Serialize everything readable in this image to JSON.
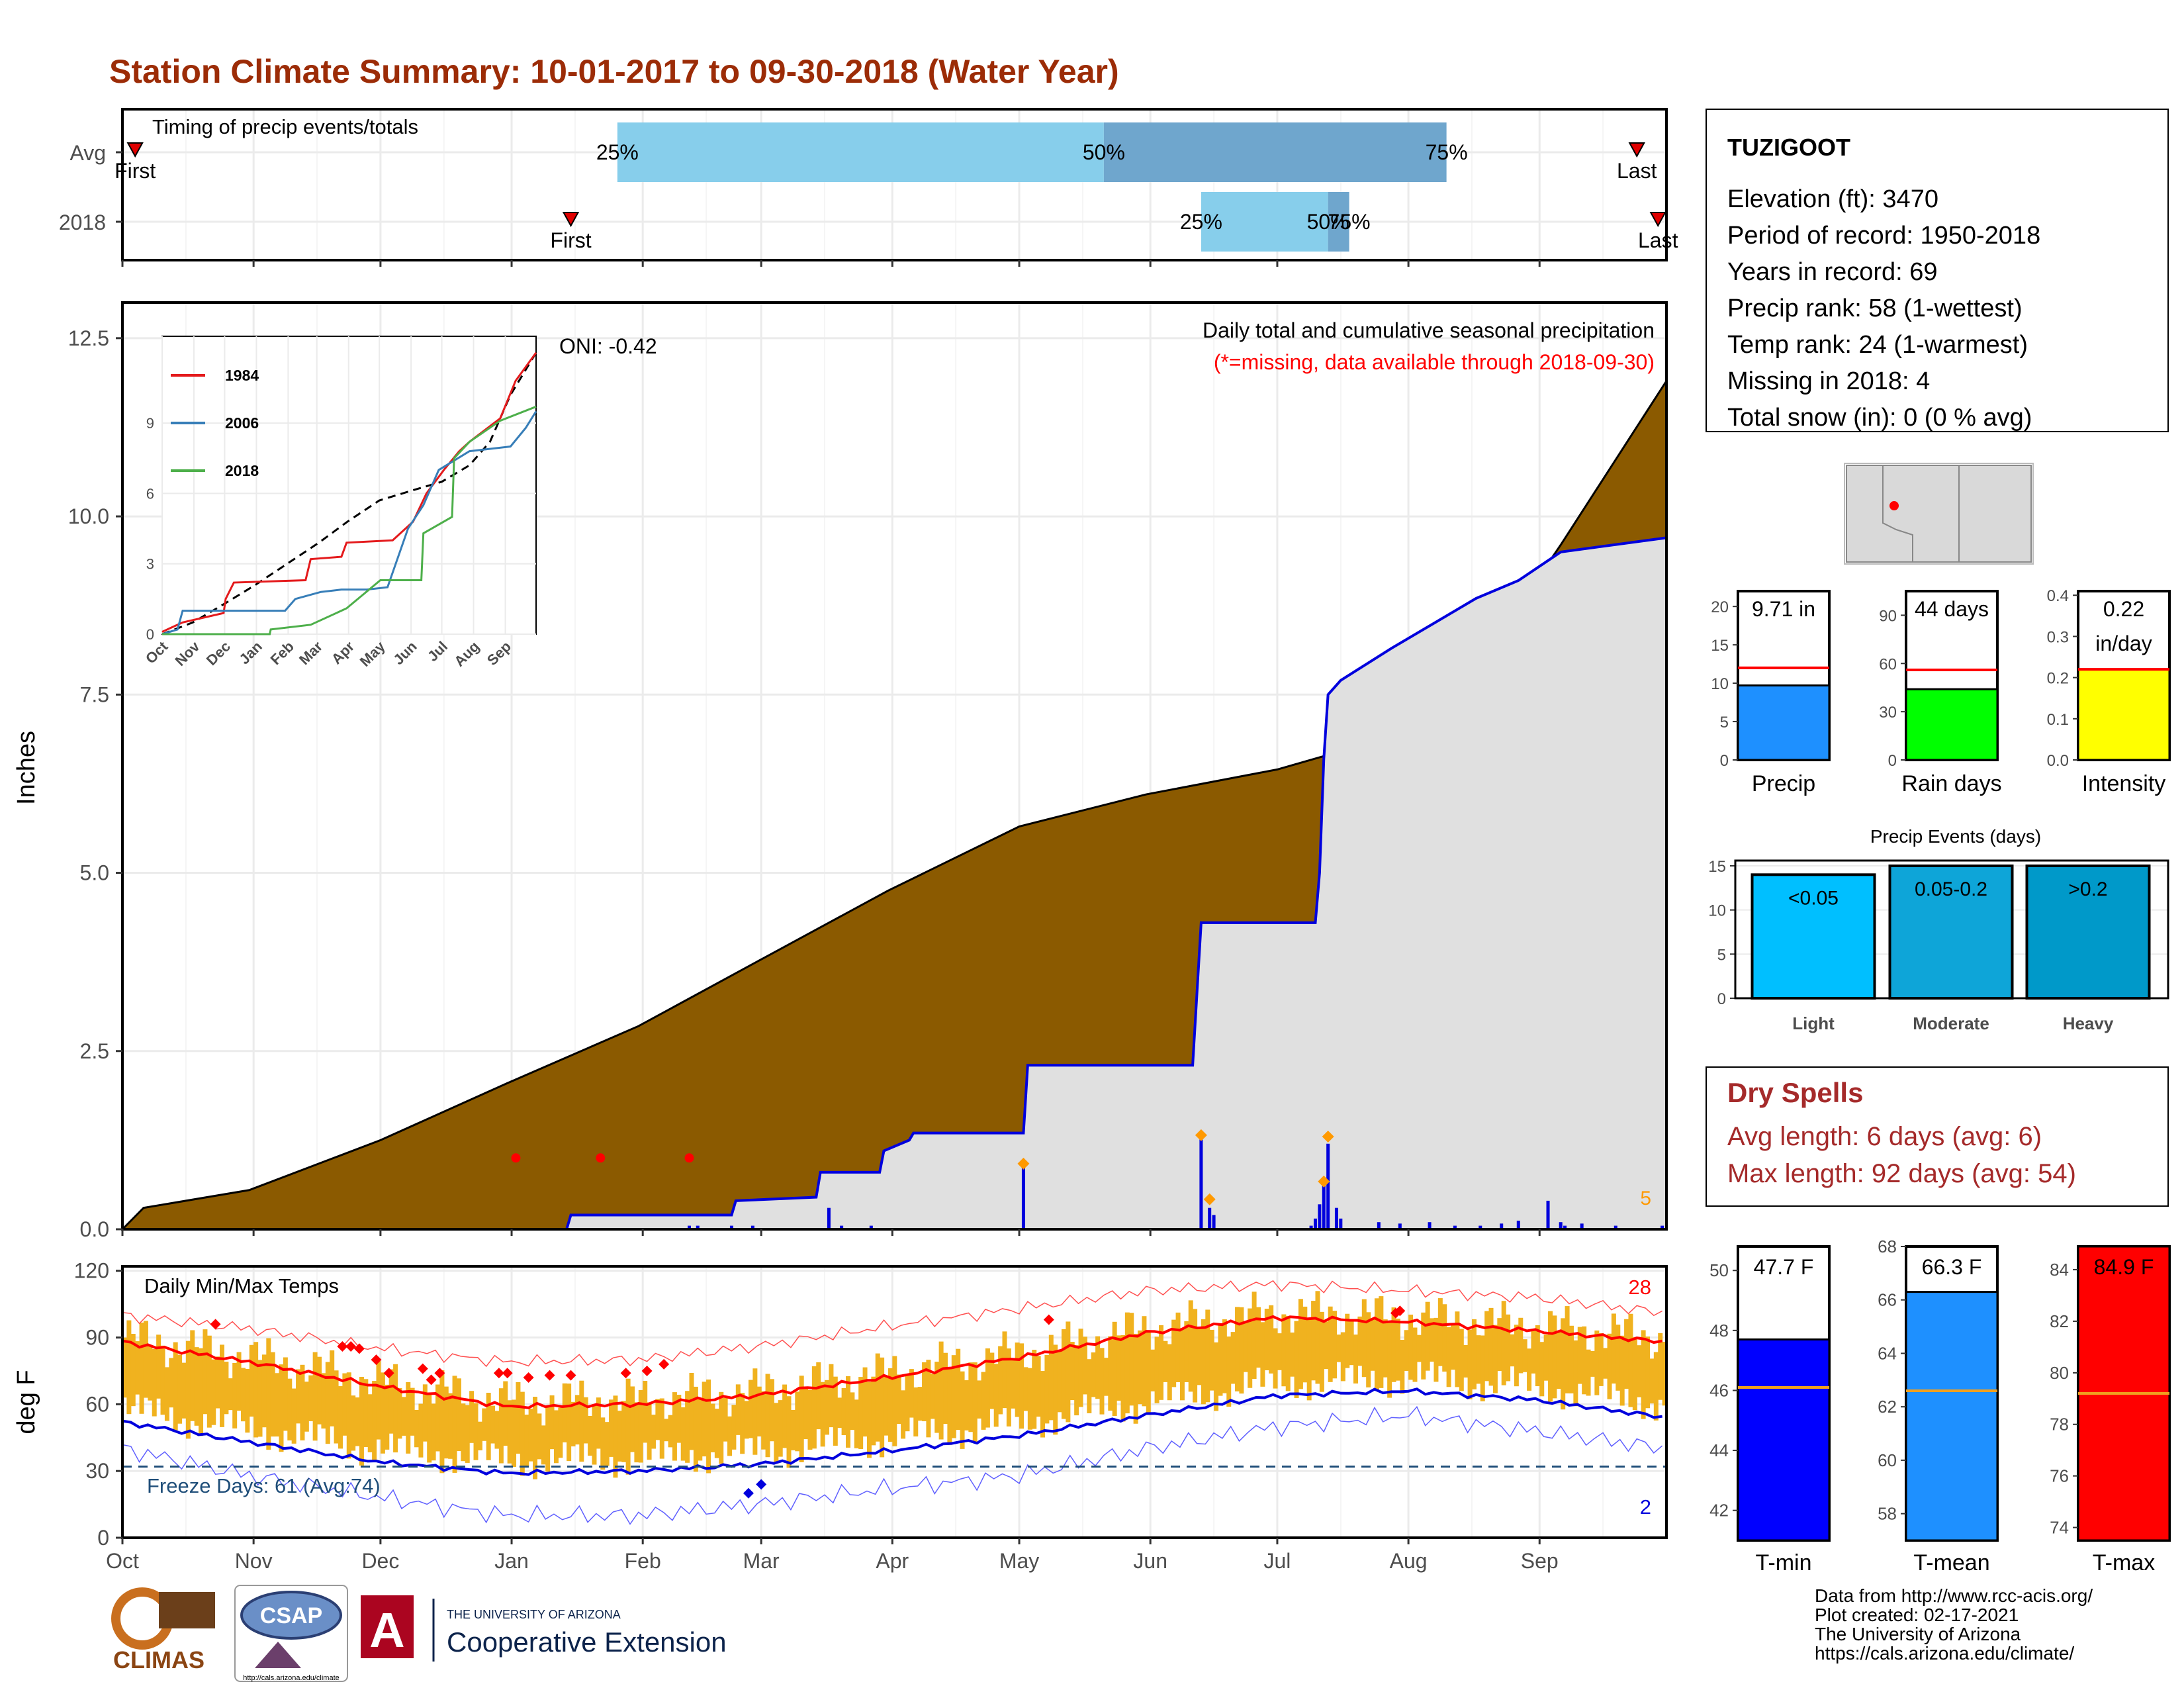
{
  "page": {
    "title": "Station Climate Summary: 10-01-2017 to 09-30-2018 (Water Year)",
    "title_color": "#9c2c07",
    "footer_credits": [
      "Data from http://www.rcc-acis.org/",
      "Plot created: 02-17-2021",
      "The University of Arizona",
      "https://cals.arizona.edu/climate/"
    ],
    "logos": {
      "climas": "CLIMAS",
      "csap": "CSAP",
      "csap_url": "http://cals.arizona.edu/climate",
      "ua_small": "THE UNIVERSITY OF ARIZONA",
      "ua_big": "Cooperative Extension",
      "ua_letter": "A"
    }
  },
  "station": {
    "name": "TUZIGOOT",
    "lines": [
      "Elevation (ft): 3470",
      "Period of record: 1950-2018",
      "Years in record: 69",
      "Precip rank: 58 (1-wettest)",
      "Temp rank: 24 (1-warmest)",
      "Missing in 2018: 4",
      "Total snow (in): 0 (0 % avg)"
    ]
  },
  "months": [
    "Oct",
    "Nov",
    "Dec",
    "Jan",
    "Feb",
    "Mar",
    "Apr",
    "May",
    "Jun",
    "Jul",
    "Aug",
    "Sep"
  ],
  "timing": {
    "title": "Timing of precip events/totals",
    "rows": [
      "Avg",
      "2018"
    ],
    "avg": {
      "first": 3,
      "last": 358,
      "p25": 117,
      "p50": 232,
      "p75": 313
    },
    "y2018": {
      "first": 106,
      "last": 363,
      "p25": 255,
      "p50": 285,
      "p75": 290
    },
    "marker_labels": {
      "first": "First",
      "last": "Last",
      "p25": "25%",
      "p50": "50%",
      "p75": "75%"
    },
    "colors": {
      "light": "#87ceeb",
      "dark": "#6fa6cd",
      "marker": "#e00000"
    }
  },
  "precip": {
    "ylabel": "Inches",
    "yticks": [
      "0.0",
      "2.5",
      "5.0",
      "7.5",
      "10.0",
      "12.5"
    ],
    "title": "Daily total and cumulative seasonal precipitation",
    "subtitle": "(*=missing, data available through 2018-09-30)",
    "missing_count": "5",
    "colors": {
      "avg_fill": "#8b5a00",
      "obs_fill": "#e0e0e0",
      "obs_line": "#0000dd",
      "bars": "#0000dd",
      "missing": "#ff9900"
    },
    "avg_cumulative": [
      [
        0,
        0.0
      ],
      [
        5,
        0.3
      ],
      [
        30,
        0.55
      ],
      [
        61,
        1.25
      ],
      [
        91,
        2.05
      ],
      [
        122,
        2.85
      ],
      [
        153,
        3.85
      ],
      [
        181,
        4.75
      ],
      [
        212,
        5.65
      ],
      [
        242,
        6.1
      ],
      [
        273,
        6.45
      ],
      [
        283,
        6.62
      ],
      [
        300,
        6.9
      ],
      [
        314,
        7.5
      ],
      [
        324,
        8.2
      ],
      [
        340,
        9.6
      ],
      [
        365,
        11.9
      ]
    ],
    "obs_cumulative": [
      [
        0,
        0.0
      ],
      [
        105,
        0.0
      ],
      [
        106,
        0.2
      ],
      [
        144,
        0.2
      ],
      [
        145,
        0.4
      ],
      [
        164,
        0.45
      ],
      [
        165,
        0.8
      ],
      [
        179,
        0.8
      ],
      [
        180,
        1.1
      ],
      [
        186,
        1.25
      ],
      [
        187,
        1.35
      ],
      [
        213,
        1.35
      ],
      [
        214,
        2.3
      ],
      [
        253,
        2.3
      ],
      [
        255,
        4.3
      ],
      [
        282,
        4.3
      ],
      [
        283,
        5.0
      ],
      [
        284,
        6.6
      ],
      [
        285,
        7.5
      ],
      [
        288,
        7.7
      ],
      [
        300,
        8.15
      ],
      [
        320,
        8.85
      ],
      [
        330,
        9.1
      ],
      [
        340,
        9.5
      ],
      [
        365,
        9.7
      ]
    ],
    "daily_bars": [
      [
        134,
        0.05
      ],
      [
        136,
        0.05
      ],
      [
        144,
        0.05
      ],
      [
        149,
        0.05
      ],
      [
        167,
        0.3
      ],
      [
        170,
        0.05
      ],
      [
        177,
        0.05
      ],
      [
        213,
        0.9
      ],
      [
        255,
        1.3
      ],
      [
        257,
        0.3
      ],
      [
        258,
        0.2
      ],
      [
        281,
        0.05
      ],
      [
        282,
        0.15
      ],
      [
        283,
        0.35
      ],
      [
        284,
        0.65
      ],
      [
        285,
        1.2
      ],
      [
        287,
        0.3
      ],
      [
        288,
        0.15
      ],
      [
        297,
        0.1
      ],
      [
        302,
        0.08
      ],
      [
        309,
        0.1
      ],
      [
        315,
        0.05
      ],
      [
        321,
        0.05
      ],
      [
        326,
        0.08
      ],
      [
        330,
        0.12
      ],
      [
        337,
        0.4
      ],
      [
        340,
        0.1
      ],
      [
        341,
        0.05
      ],
      [
        345,
        0.08
      ],
      [
        353,
        0.05
      ],
      [
        364,
        0.05
      ]
    ],
    "missing_markers": [
      [
        93,
        1.0
      ],
      [
        113,
        1.0
      ],
      [
        134,
        1.0
      ]
    ],
    "event_markers": [
      [
        213,
        0.92
      ],
      [
        255,
        1.32
      ],
      [
        257,
        0.42
      ],
      [
        284,
        0.67
      ],
      [
        285,
        1.3
      ]
    ]
  },
  "inset": {
    "oni_label": "ONI: -0.42",
    "yticks": [
      "0",
      "3",
      "6",
      "9"
    ],
    "xticks": [
      "Oct",
      "Nov",
      "Dec",
      "Jan",
      "Feb",
      "Mar",
      "Apr",
      "May",
      "Jun",
      "Jul",
      "Aug",
      "Sep"
    ],
    "series": [
      {
        "name": "1984",
        "color": "#e41a1c",
        "points": [
          [
            0,
            0.1
          ],
          [
            20,
            0.5
          ],
          [
            60,
            0.9
          ],
          [
            62,
            1.5
          ],
          [
            70,
            2.2
          ],
          [
            140,
            2.3
          ],
          [
            145,
            3.2
          ],
          [
            175,
            3.3
          ],
          [
            180,
            3.9
          ],
          [
            225,
            4.0
          ],
          [
            245,
            4.8
          ],
          [
            258,
            6.0
          ],
          [
            275,
            7.0
          ],
          [
            290,
            7.8
          ],
          [
            300,
            8.2
          ],
          [
            330,
            9.2
          ],
          [
            345,
            10.8
          ],
          [
            365,
            12.0
          ]
        ]
      },
      {
        "name": "2006",
        "color": "#377eb8",
        "points": [
          [
            0,
            0.0
          ],
          [
            15,
            0.2
          ],
          [
            20,
            1.0
          ],
          [
            120,
            1.0
          ],
          [
            130,
            1.5
          ],
          [
            155,
            1.8
          ],
          [
            175,
            1.9
          ],
          [
            200,
            1.9
          ],
          [
            220,
            2.0
          ],
          [
            240,
            4.5
          ],
          [
            255,
            5.5
          ],
          [
            270,
            7.0
          ],
          [
            300,
            7.8
          ],
          [
            340,
            8.0
          ],
          [
            355,
            8.8
          ],
          [
            365,
            9.5
          ]
        ]
      },
      {
        "name": "2018",
        "color": "#4daf4a",
        "points": [
          [
            0,
            0.0
          ],
          [
            105,
            0.0
          ],
          [
            106,
            0.2
          ],
          [
            145,
            0.4
          ],
          [
            180,
            1.1
          ],
          [
            213,
            2.3
          ],
          [
            253,
            2.3
          ],
          [
            255,
            4.3
          ],
          [
            283,
            5.0
          ],
          [
            285,
            7.5
          ],
          [
            300,
            8.2
          ],
          [
            330,
            9.1
          ],
          [
            365,
            9.7
          ]
        ]
      }
    ],
    "avg_curve": [
      [
        0,
        0.0
      ],
      [
        30,
        0.5
      ],
      [
        61,
        1.3
      ],
      [
        91,
        2.1
      ],
      [
        122,
        3.0
      ],
      [
        153,
        3.9
      ],
      [
        181,
        4.8
      ],
      [
        212,
        5.7
      ],
      [
        242,
        6.1
      ],
      [
        273,
        6.5
      ],
      [
        300,
        7.2
      ],
      [
        320,
        8.2
      ],
      [
        340,
        10.2
      ],
      [
        365,
        12.0
      ]
    ]
  },
  "temps": {
    "title": "Daily Min/Max Temps",
    "ylabel": "deg F",
    "yticks": [
      "0",
      "30",
      "60",
      "90",
      "120"
    ],
    "freeze_label": "Freeze Days: 61 (Avg:74)",
    "freeze_threshold": 32,
    "count_high": "28",
    "count_low": "2",
    "colors": {
      "bars": "#f0b21f",
      "avgmax": "#ff0000",
      "avgmin": "#0000dd",
      "recmax": "#ff5050",
      "recmin": "#6060ff",
      "freeze": "#1f4e79"
    },
    "avg_max_curve": [
      [
        0,
        88
      ],
      [
        30,
        79
      ],
      [
        61,
        68
      ],
      [
        91,
        59
      ],
      [
        122,
        60
      ],
      [
        150,
        64
      ],
      [
        181,
        72
      ],
      [
        212,
        81
      ],
      [
        242,
        92
      ],
      [
        273,
        99
      ],
      [
        304,
        97
      ],
      [
        334,
        93
      ],
      [
        365,
        88
      ]
    ],
    "avg_min_curve": [
      [
        0,
        52
      ],
      [
        30,
        43
      ],
      [
        61,
        34
      ],
      [
        91,
        29
      ],
      [
        122,
        30
      ],
      [
        150,
        33
      ],
      [
        181,
        39
      ],
      [
        212,
        46
      ],
      [
        242,
        55
      ],
      [
        273,
        64
      ],
      [
        304,
        66
      ],
      [
        334,
        62
      ],
      [
        365,
        54
      ]
    ],
    "rec_high_curve": [
      [
        0,
        100
      ],
      [
        30,
        94
      ],
      [
        61,
        85
      ],
      [
        91,
        79
      ],
      [
        122,
        80
      ],
      [
        150,
        86
      ],
      [
        181,
        95
      ],
      [
        212,
        103
      ],
      [
        242,
        111
      ],
      [
        273,
        114
      ],
      [
        304,
        111
      ],
      [
        334,
        108
      ],
      [
        365,
        101
      ]
    ],
    "rec_low_curve": [
      [
        0,
        40
      ],
      [
        30,
        28
      ],
      [
        61,
        18
      ],
      [
        91,
        10
      ],
      [
        122,
        10
      ],
      [
        150,
        15
      ],
      [
        181,
        22
      ],
      [
        212,
        28
      ],
      [
        242,
        40
      ],
      [
        273,
        50
      ],
      [
        304,
        55
      ],
      [
        334,
        48
      ],
      [
        365,
        40
      ]
    ],
    "record_highs": [
      [
        22,
        96
      ],
      [
        52,
        86
      ],
      [
        54,
        86
      ],
      [
        56,
        85
      ],
      [
        60,
        80
      ],
      [
        63,
        74
      ],
      [
        71,
        76
      ],
      [
        73,
        71
      ],
      [
        75,
        74
      ],
      [
        89,
        74
      ],
      [
        91,
        74
      ],
      [
        96,
        72
      ],
      [
        101,
        73
      ],
      [
        106,
        73
      ],
      [
        119,
        74
      ],
      [
        124,
        75
      ],
      [
        128,
        78
      ],
      [
        219,
        98
      ],
      [
        301,
        101
      ],
      [
        302,
        102
      ]
    ],
    "record_lows": [
      [
        148,
        20
      ],
      [
        151,
        24
      ]
    ]
  },
  "gauges": {
    "precip": [
      {
        "name": "Precip",
        "label1": "9.71 in",
        "label2": "",
        "value": 9.71,
        "avg": 12.0,
        "max": 22,
        "ticks": [
          "0",
          "5",
          "10",
          "15",
          "20"
        ],
        "color": "#1e90ff"
      },
      {
        "name": "Rain days",
        "label1": "44 days",
        "label2": "",
        "value": 44,
        "avg": 56,
        "max": 105,
        "ticks": [
          "0",
          "30",
          "60",
          "90"
        ],
        "color": "#00ff00"
      },
      {
        "name": "Intensity",
        "label1": "0.22",
        "label2": "in/day",
        "value": 0.22,
        "avg": 0.22,
        "max": 0.41,
        "ticks": [
          "0.0",
          "0.1",
          "0.2",
          "0.3",
          "0.4"
        ],
        "color": "#ffff00"
      }
    ],
    "events": {
      "title": "Precip Events (days)",
      "ticks": [
        "0",
        "5",
        "10",
        "15"
      ],
      "bars": [
        {
          "name": "Light",
          "label": "<0.05",
          "value": 14,
          "avg": 14,
          "color": "#00bfff"
        },
        {
          "name": "Moderate",
          "label": "0.05-0.2",
          "value": 15,
          "avg": 15,
          "color": "#0ea5d8"
        },
        {
          "name": "Heavy",
          "label": ">0.2",
          "value": 15,
          "avg": 15,
          "color": "#0099c9"
        }
      ]
    },
    "dry": {
      "title": "Dry Spells",
      "avg_line": "Avg length: 6 days (avg: 6)",
      "max_line": "Max length: 92 days (avg: 54)",
      "color": "#a52a2a"
    },
    "temps": [
      {
        "name": "T-min",
        "label": "47.7 F",
        "value": 47.7,
        "avg": 46.1,
        "min": 41,
        "max": 50.8,
        "ticks": [
          "42",
          "44",
          "46",
          "48",
          "50"
        ],
        "color": "#0000ff"
      },
      {
        "name": "T-mean",
        "label": "66.3 F",
        "value": 66.3,
        "avg": 62.6,
        "min": 57,
        "max": 68,
        "ticks": [
          "58",
          "60",
          "62",
          "64",
          "66",
          "68"
        ],
        "color": "#1e90ff"
      },
      {
        "name": "T-max",
        "label": "84.9 F",
        "value": 84.9,
        "avg": 79.2,
        "min": 73.5,
        "max": 84.9,
        "ticks": [
          "74",
          "76",
          "78",
          "80",
          "82",
          "84"
        ],
        "color": "#ff0000"
      }
    ]
  },
  "chart_data": [
    {
      "type": "area",
      "title": "Daily total and cumulative seasonal precipitation",
      "ylabel": "Inches",
      "ylim": [
        0,
        13
      ],
      "x_categories": [
        "Oct",
        "Nov",
        "Dec",
        "Jan",
        "Feb",
        "Mar",
        "Apr",
        "May",
        "Jun",
        "Jul",
        "Aug",
        "Sep"
      ],
      "series": [
        {
          "name": "avg cumulative",
          "total": 11.9
        },
        {
          "name": "2018 cumulative",
          "total": 9.71
        }
      ]
    },
    {
      "type": "line",
      "title": "Daily Min/Max Temps",
      "ylabel": "deg F",
      "ylim": [
        0,
        122
      ],
      "x_categories": [
        "Oct",
        "Nov",
        "Dec",
        "Jan",
        "Feb",
        "Mar",
        "Apr",
        "May",
        "Jun",
        "Jul",
        "Aug",
        "Sep"
      ]
    }
  ]
}
